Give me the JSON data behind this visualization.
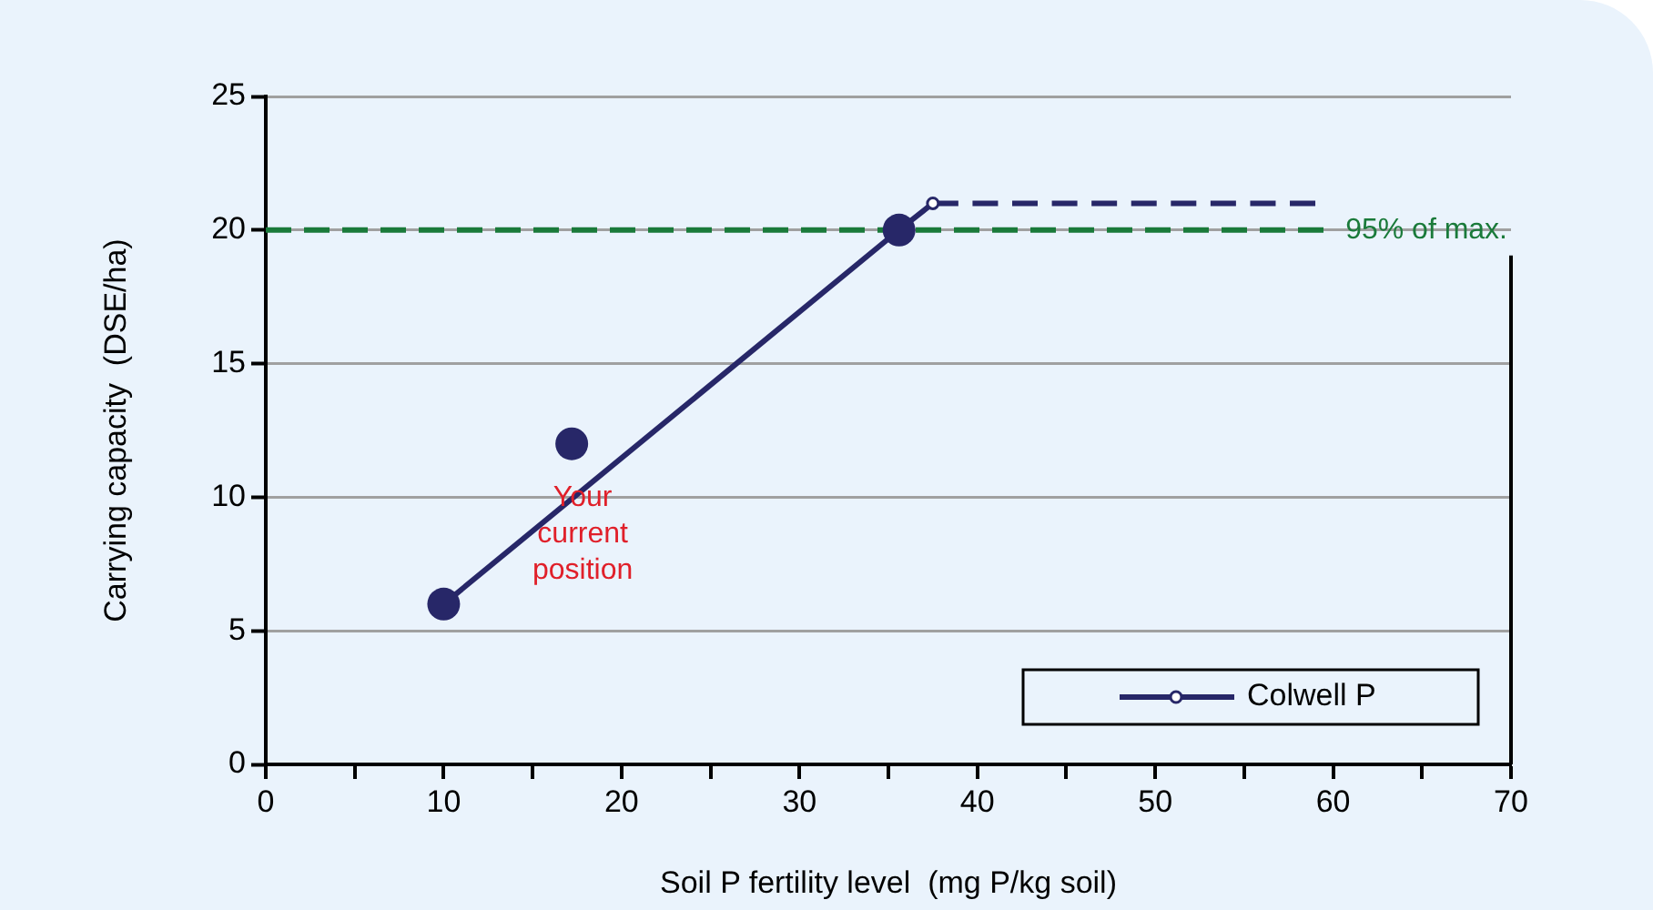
{
  "chart_data": {
    "type": "line",
    "xlabel": "Soil P fertility level  (mg P/kg soil)",
    "ylabel": "Carrying capacity  (DSE/ha)",
    "xlim": [
      0,
      70
    ],
    "xticks": [
      0,
      {
        "value": 5,
        "label": null
      },
      10,
      {
        "value": 15,
        "label": null
      },
      20,
      {
        "value": 25,
        "label": null
      },
      30,
      {
        "value": 35,
        "label": null
      },
      40,
      {
        "value": 45,
        "label": null
      },
      50,
      {
        "value": 55,
        "label": null
      },
      60,
      {
        "value": 65,
        "label": null
      },
      70
    ],
    "ylim": [
      0,
      25
    ],
    "yticks": [
      0,
      5,
      10,
      15,
      20,
      25
    ],
    "grid": "y",
    "legend": "bottom right",
    "series": [
      {
        "name": "Colwell P",
        "type": "line",
        "color": "#272768",
        "x": [
          10,
          35.6,
          37.5
        ],
        "values": [
          6,
          20,
          21
        ],
        "marker": "circle",
        "line_style": "solid"
      },
      {
        "type": "line",
        "color": "#272768",
        "x": [
          37.5,
          59
        ],
        "values": [
          21,
          21
        ],
        "marker": "none",
        "line_style": "dashed"
      },
      {
        "type": "scatter",
        "color": "#272768",
        "x": [
          10,
          17.2,
          35.6
        ],
        "values": [
          6,
          12,
          20
        ],
        "marker": "circle"
      }
    ],
    "ref_lines": [
      {
        "axis": "y",
        "value": 20,
        "label": "95% of max.",
        "color": "#1a7a3a",
        "line_style": "dashed"
      }
    ],
    "annotations": [
      {
        "text": "Your current position",
        "x": 17.2,
        "y": 12
      }
    ]
  }
}
